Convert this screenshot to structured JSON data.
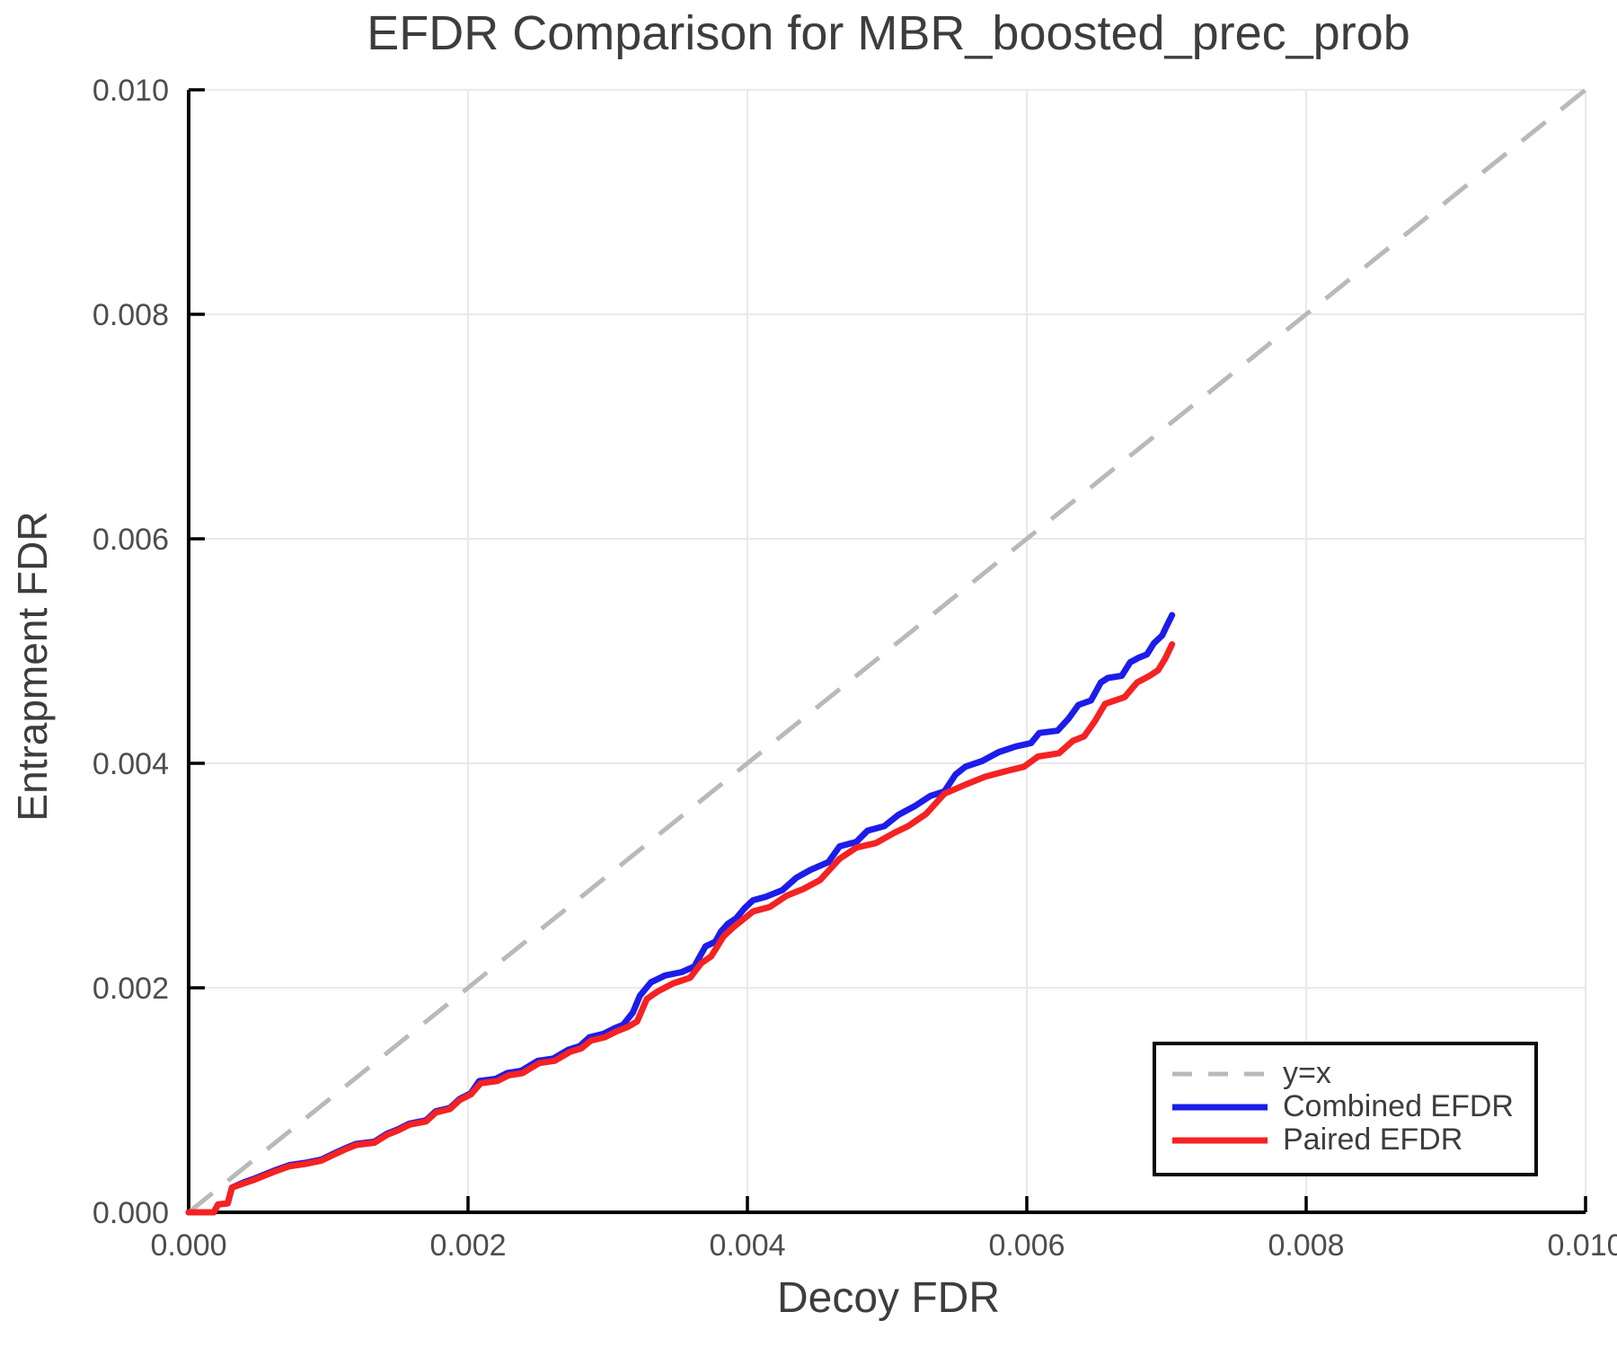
{
  "styles": {
    "background": "#ffffff",
    "text_color": "#3d3d3d",
    "tick_text_color": "#4d4d4d",
    "grid_color": "#e9e9e9",
    "spine_color": "#000000",
    "legend_border_color": "#0a0a0a",
    "yx_line_color": "#b9b9b9",
    "combined_color": "#1c1ceb",
    "paired_color": "#f52222"
  },
  "chart_data": {
    "type": "line",
    "title": "EFDR Comparison for MBR_boosted_prec_prob",
    "xlabel": "Decoy FDR",
    "ylabel": "Entrapment FDR",
    "xlim": [
      0.0,
      0.01
    ],
    "ylim": [
      0.0,
      0.01
    ],
    "xticks": [
      0.0,
      0.002,
      0.004,
      0.006,
      0.008,
      0.01
    ],
    "yticks": [
      0.0,
      0.002,
      0.004,
      0.006,
      0.008,
      0.01
    ],
    "tick_decimals": 3,
    "grid": true,
    "legend_position": "bottom-right",
    "legend_entries": [
      "y=x",
      "Combined EFDR",
      "Paired EFDR"
    ],
    "series": [
      {
        "id": "y-equals-x",
        "name": "y=x",
        "color": "#b9b9b9",
        "style": "dashed",
        "points": [
          [
            0.0,
            0.0
          ],
          [
            0.01,
            0.01
          ]
        ]
      },
      {
        "id": "combined-efdr",
        "name": "Combined EFDR",
        "color": "#1c1ceb",
        "style": "solid",
        "points": [
          [
            0.0,
            0.0
          ],
          [
            0.00018,
            0.0
          ],
          [
            0.00021,
            7e-05
          ],
          [
            0.00028,
            8e-05
          ],
          [
            0.00031,
            0.00022
          ],
          [
            0.0004,
            0.00027
          ],
          [
            0.00047,
            0.0003
          ],
          [
            0.00055,
            0.00034
          ],
          [
            0.00063,
            0.00038
          ],
          [
            0.00072,
            0.00042
          ],
          [
            0.00083,
            0.00044
          ],
          [
            0.00095,
            0.00047
          ],
          [
            0.00105,
            0.00053
          ],
          [
            0.00112,
            0.00057
          ],
          [
            0.0012,
            0.00061
          ],
          [
            0.00133,
            0.00063
          ],
          [
            0.00142,
            0.0007
          ],
          [
            0.0015,
            0.00074
          ],
          [
            0.00158,
            0.00079
          ],
          [
            0.0017,
            0.00082
          ],
          [
            0.00177,
            0.0009
          ],
          [
            0.00187,
            0.00093
          ],
          [
            0.00194,
            0.00101
          ],
          [
            0.00202,
            0.00106
          ],
          [
            0.00208,
            0.00117
          ],
          [
            0.0022,
            0.00119
          ],
          [
            0.00228,
            0.00124
          ],
          [
            0.00238,
            0.00126
          ],
          [
            0.0025,
            0.00135
          ],
          [
            0.00261,
            0.00137
          ],
          [
            0.00272,
            0.00145
          ],
          [
            0.0028,
            0.00148
          ],
          [
            0.00287,
            0.00156
          ],
          [
            0.00297,
            0.00159
          ],
          [
            0.00305,
            0.00164
          ],
          [
            0.00311,
            0.00167
          ],
          [
            0.00318,
            0.00178
          ],
          [
            0.00323,
            0.00193
          ],
          [
            0.00331,
            0.00205
          ],
          [
            0.00341,
            0.00211
          ],
          [
            0.00353,
            0.00214
          ],
          [
            0.00362,
            0.00219
          ],
          [
            0.00366,
            0.00228
          ],
          [
            0.0037,
            0.00237
          ],
          [
            0.00377,
            0.00241
          ],
          [
            0.00381,
            0.0025
          ],
          [
            0.00386,
            0.00257
          ],
          [
            0.00392,
            0.00262
          ],
          [
            0.00398,
            0.00271
          ],
          [
            0.00404,
            0.00278
          ],
          [
            0.00413,
            0.00281
          ],
          [
            0.00425,
            0.00287
          ],
          [
            0.00435,
            0.00298
          ],
          [
            0.00445,
            0.00305
          ],
          [
            0.00458,
            0.00312
          ],
          [
            0.00466,
            0.00326
          ],
          [
            0.00478,
            0.0033
          ],
          [
            0.00486,
            0.0034
          ],
          [
            0.00498,
            0.00344
          ],
          [
            0.00508,
            0.00354
          ],
          [
            0.0052,
            0.00362
          ],
          [
            0.00531,
            0.00371
          ],
          [
            0.00541,
            0.00375
          ],
          [
            0.00549,
            0.0039
          ],
          [
            0.00556,
            0.00397
          ],
          [
            0.00568,
            0.00402
          ],
          [
            0.0058,
            0.0041
          ],
          [
            0.00592,
            0.00415
          ],
          [
            0.00603,
            0.00418
          ],
          [
            0.00609,
            0.00427
          ],
          [
            0.00622,
            0.00429
          ],
          [
            0.0063,
            0.0044
          ],
          [
            0.00637,
            0.00452
          ],
          [
            0.00646,
            0.00456
          ],
          [
            0.00653,
            0.00472
          ],
          [
            0.00658,
            0.00476
          ],
          [
            0.00668,
            0.00478
          ],
          [
            0.00674,
            0.0049
          ],
          [
            0.0068,
            0.00494
          ],
          [
            0.00686,
            0.00497
          ],
          [
            0.00691,
            0.00507
          ],
          [
            0.00697,
            0.00514
          ],
          [
            0.007,
            0.00522
          ],
          [
            0.00704,
            0.00532
          ]
        ]
      },
      {
        "id": "paired-efdr",
        "name": "Paired EFDR",
        "color": "#f52222",
        "style": "solid",
        "points": [
          [
            0.0,
            0.0
          ],
          [
            0.00018,
            0.0
          ],
          [
            0.00021,
            7e-05
          ],
          [
            0.00028,
            8e-05
          ],
          [
            0.00031,
            0.00022
          ],
          [
            0.0004,
            0.00026
          ],
          [
            0.00047,
            0.00029
          ],
          [
            0.00055,
            0.00033
          ],
          [
            0.00063,
            0.00037
          ],
          [
            0.00072,
            0.00041
          ],
          [
            0.00083,
            0.00043
          ],
          [
            0.00095,
            0.00046
          ],
          [
            0.00105,
            0.00052
          ],
          [
            0.00112,
            0.00056
          ],
          [
            0.0012,
            0.0006
          ],
          [
            0.00133,
            0.00062
          ],
          [
            0.00142,
            0.00069
          ],
          [
            0.0015,
            0.00073
          ],
          [
            0.00158,
            0.00078
          ],
          [
            0.0017,
            0.00081
          ],
          [
            0.00177,
            0.00089
          ],
          [
            0.00187,
            0.00092
          ],
          [
            0.00194,
            0.001
          ],
          [
            0.00202,
            0.00105
          ],
          [
            0.00209,
            0.00115
          ],
          [
            0.00221,
            0.00117
          ],
          [
            0.00229,
            0.00122
          ],
          [
            0.00239,
            0.00124
          ],
          [
            0.00251,
            0.00133
          ],
          [
            0.00262,
            0.00135
          ],
          [
            0.00273,
            0.00143
          ],
          [
            0.00281,
            0.00146
          ],
          [
            0.00288,
            0.00153
          ],
          [
            0.00298,
            0.00156
          ],
          [
            0.00306,
            0.00161
          ],
          [
            0.00314,
            0.00165
          ],
          [
            0.00321,
            0.0017
          ],
          [
            0.00328,
            0.0019
          ],
          [
            0.00336,
            0.00197
          ],
          [
            0.00347,
            0.00204
          ],
          [
            0.00359,
            0.00209
          ],
          [
            0.00367,
            0.00222
          ],
          [
            0.00374,
            0.00228
          ],
          [
            0.00383,
            0.00246
          ],
          [
            0.0039,
            0.00254
          ],
          [
            0.00398,
            0.00262
          ],
          [
            0.00404,
            0.00268
          ],
          [
            0.00416,
            0.00272
          ],
          [
            0.00428,
            0.00282
          ],
          [
            0.0044,
            0.00288
          ],
          [
            0.00452,
            0.00296
          ],
          [
            0.00466,
            0.00315
          ],
          [
            0.00478,
            0.00325
          ],
          [
            0.00492,
            0.00329
          ],
          [
            0.00505,
            0.00338
          ],
          [
            0.00515,
            0.00344
          ],
          [
            0.00528,
            0.00355
          ],
          [
            0.00541,
            0.00373
          ],
          [
            0.00556,
            0.00381
          ],
          [
            0.0057,
            0.00388
          ],
          [
            0.00585,
            0.00393
          ],
          [
            0.00598,
            0.00397
          ],
          [
            0.00608,
            0.00406
          ],
          [
            0.00623,
            0.00409
          ],
          [
            0.00633,
            0.0042
          ],
          [
            0.00641,
            0.00424
          ],
          [
            0.00649,
            0.00438
          ],
          [
            0.00656,
            0.00453
          ],
          [
            0.0067,
            0.00459
          ],
          [
            0.00679,
            0.00472
          ],
          [
            0.00688,
            0.00478
          ],
          [
            0.00694,
            0.00483
          ],
          [
            0.00699,
            0.00493
          ],
          [
            0.00704,
            0.00506
          ]
        ]
      }
    ]
  }
}
